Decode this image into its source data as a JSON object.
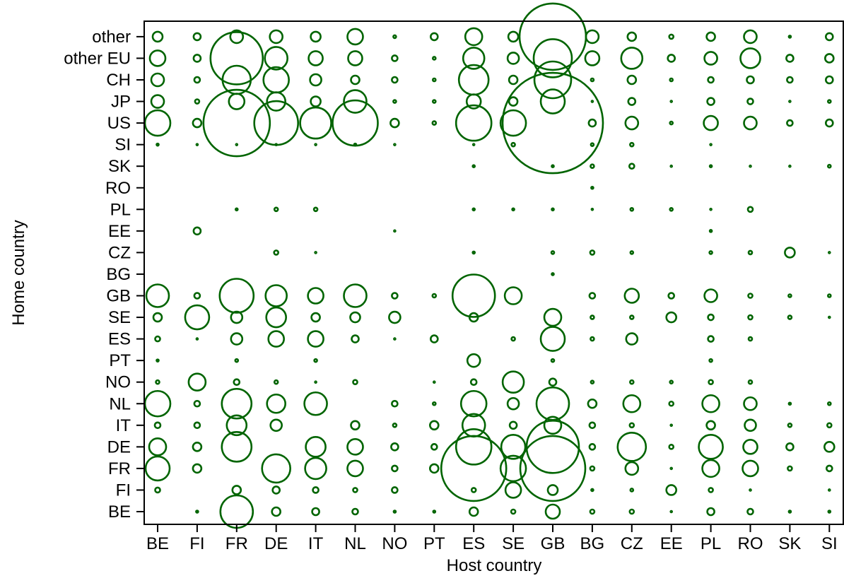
{
  "chart_data": {
    "type": "scatter",
    "subtype": "bubble",
    "title": "",
    "xlabel": "Host country",
    "ylabel": "Home country",
    "x_categories": [
      "BE",
      "FI",
      "FR",
      "DE",
      "IT",
      "NL",
      "NO",
      "PT",
      "ES",
      "SE",
      "GB",
      "BG",
      "CZ",
      "EE",
      "PL",
      "RO",
      "SK",
      "SI"
    ],
    "y_categories": [
      "BE",
      "FI",
      "FR",
      "DE",
      "IT",
      "NL",
      "NO",
      "PT",
      "ES",
      "SE",
      "GB",
      "BG",
      "CZ",
      "EE",
      "PL",
      "RO",
      "SK",
      "SI",
      "US",
      "JP",
      "CH",
      "other EU",
      "other"
    ],
    "marker_color": "#006400",
    "grid": false,
    "bubble_radii": {
      "other": {
        "BE": 7,
        "FI": 5,
        "FR": 9,
        "DE": 9,
        "IT": 7,
        "NL": 11,
        "NO": 2,
        "PT": 5,
        "ES": 12,
        "SE": 7,
        "GB": 47,
        "BG": 9,
        "CZ": 6,
        "EE": 3,
        "PL": 6,
        "RO": 9,
        "SK": 1.5,
        "SI": 5
      },
      "other EU": {
        "BE": 11,
        "FI": 5,
        "FR": 37,
        "DE": 16,
        "IT": 10,
        "NL": 10,
        "NO": 4,
        "PT": 2,
        "ES": 15,
        "SE": 8,
        "GB": 27,
        "BG": 10,
        "CZ": 15,
        "EE": 5,
        "PL": 9,
        "RO": 14,
        "SK": 5,
        "SI": 6
      },
      "CH": {
        "BE": 9,
        "FI": 4,
        "FR": 20,
        "DE": 18,
        "IT": 8,
        "NL": 6,
        "NO": 4,
        "PT": 2,
        "ES": 21,
        "SE": 6,
        "GB": 26,
        "BG": 2,
        "CZ": 6,
        "EE": 2,
        "PL": 4,
        "RO": 5,
        "SK": 4,
        "SI": 5
      },
      "JP": {
        "BE": 9,
        "FI": 3,
        "FR": 11,
        "DE": 13,
        "IT": 7,
        "NL": 16,
        "NO": 2,
        "PT": 2,
        "ES": 10,
        "SE": 6,
        "GB": 17,
        "BG": 1,
        "CZ": 5,
        "EE": 1,
        "PL": 5,
        "RO": 4,
        "SK": 1,
        "SI": 2
      },
      "US": {
        "BE": 18,
        "FI": 6,
        "FR": 47,
        "DE": 31,
        "IT": 22,
        "NL": 32,
        "NO": 6,
        "PT": 2.5,
        "ES": 25,
        "SE": 18,
        "GB": 71,
        "BG": 5,
        "CZ": 9,
        "EE": 2,
        "PL": 10,
        "RO": 9,
        "SK": 4,
        "SI": 5
      },
      "SI": {
        "BE": 1.5,
        "FI": 1,
        "FR": 1,
        "DE": 1,
        "IT": 1,
        "NL": 1.5,
        "NO": 1,
        "ES": 1,
        "SE": 2.5,
        "BG": 2,
        "CZ": 2.5,
        "PL": 1
      },
      "SK": {
        "ES": 1.5,
        "GB": 1.5,
        "BG": 2.5,
        "CZ": 3.5,
        "EE": 1,
        "PL": 1.5,
        "RO": 1,
        "SK": 1,
        "SI": 2
      },
      "RO": {
        "BG": 1.5
      },
      "PL": {
        "FR": 1.5,
        "DE": 2.5,
        "IT": 2.5,
        "ES": 1.5,
        "SE": 1.5,
        "GB": 1.5,
        "BG": 1,
        "CZ": 2,
        "EE": 2,
        "PL": 1,
        "RO": 3.5
      },
      "EE": {
        "FI": 5,
        "NO": 1,
        "PL": 1.5
      },
      "CZ": {
        "DE": 3,
        "IT": 1,
        "ES": 1.5,
        "GB": 2,
        "BG": 3,
        "CZ": 2,
        "PL": 2,
        "RO": 2.5,
        "SK": 7,
        "SI": 1
      },
      "BG": {
        "GB": 1.5
      },
      "GB": {
        "BE": 16,
        "FI": 4,
        "FR": 24,
        "DE": 15,
        "IT": 11,
        "NL": 16,
        "NO": 4,
        "PT": 2.5,
        "ES": 30,
        "SE": 12,
        "BG": 4,
        "CZ": 10,
        "EE": 4,
        "PL": 9,
        "RO": 3,
        "SK": 2,
        "SI": 2
      },
      "SE": {
        "BE": 6,
        "FI": 17,
        "FR": 8,
        "DE": 14,
        "IT": 6,
        "NL": 7,
        "NO": 8,
        "ES": 6,
        "GB": 12,
        "BG": 2.5,
        "CZ": 2.5,
        "EE": 7,
        "PL": 4,
        "RO": 3,
        "SK": 2.5,
        "SI": 1
      },
      "ES": {
        "BE": 3.5,
        "FI": 1,
        "FR": 8,
        "DE": 11,
        "IT": 11,
        "NL": 5,
        "NO": 1,
        "PT": 5,
        "SE": 2.5,
        "GB": 17,
        "BG": 2.5,
        "CZ": 8,
        "PL": 4,
        "RO": 2.5
      },
      "PT": {
        "BE": 1.5,
        "FR": 2,
        "IT": 2,
        "ES": 9,
        "GB": 2,
        "PL": 2
      },
      "NO": {
        "BE": 2.5,
        "FI": 12,
        "FR": 4,
        "DE": 2.5,
        "IT": 1,
        "NL": 3,
        "PT": 1,
        "ES": 4,
        "SE": 15,
        "GB": 5,
        "BG": 2,
        "CZ": 2.5,
        "EE": 2,
        "PL": 3,
        "RO": 2.5
      },
      "NL": {
        "BE": 18,
        "FI": 4,
        "FR": 21,
        "DE": 13,
        "IT": 16,
        "NO": 4,
        "PT": 2,
        "ES": 18,
        "SE": 8,
        "GB": 23,
        "BG": 6,
        "CZ": 12,
        "EE": 3,
        "PL": 12,
        "RO": 9,
        "SK": 1.5,
        "SI": 2
      },
      "IT": {
        "BE": 4,
        "FI": 4,
        "FR": 14,
        "DE": 8,
        "NL": 6,
        "NO": 2.5,
        "PT": 6,
        "ES": 16,
        "SE": 5,
        "GB": 12,
        "BG": 4,
        "CZ": 3,
        "EE": 1,
        "PL": 6,
        "RO": 8,
        "SK": 2.5,
        "SI": 3
      },
      "DE": {
        "BE": 12,
        "FI": 6,
        "FR": 21,
        "IT": 14,
        "NL": 11,
        "NO": 5,
        "PT": 4,
        "ES": 25,
        "SE": 17,
        "GB": 37,
        "BG": 4,
        "CZ": 20,
        "EE": 3,
        "PL": 17,
        "RO": 10,
        "SK": 5,
        "SI": 7
      },
      "FR": {
        "BE": 17,
        "FI": 6,
        "DE": 20,
        "IT": 15,
        "NL": 11,
        "NO": 4,
        "PT": 6,
        "ES": 46,
        "SE": 18,
        "GB": 46,
        "BG": 3,
        "CZ": 9,
        "EE": 1,
        "PL": 12,
        "RO": 11,
        "SK": 3,
        "SI": 4
      },
      "FI": {
        "BE": 3.5,
        "FR": 6,
        "DE": 5,
        "IT": 4,
        "NL": 3,
        "NO": 4,
        "ES": 3,
        "SE": 11,
        "GB": 7,
        "BG": 1.5,
        "CZ": 2,
        "EE": 7,
        "PL": 3,
        "RO": 1,
        "SI": 1
      },
      "BE": {
        "FI": 1.5,
        "FR": 23,
        "DE": 6,
        "IT": 5,
        "NL": 4,
        "NO": 1.5,
        "PT": 1.5,
        "ES": 6,
        "SE": 3,
        "GB": 10,
        "BG": 3,
        "CZ": 3,
        "EE": 1,
        "PL": 5,
        "RO": 4,
        "SK": 1.5,
        "SI": 1.5
      }
    }
  }
}
